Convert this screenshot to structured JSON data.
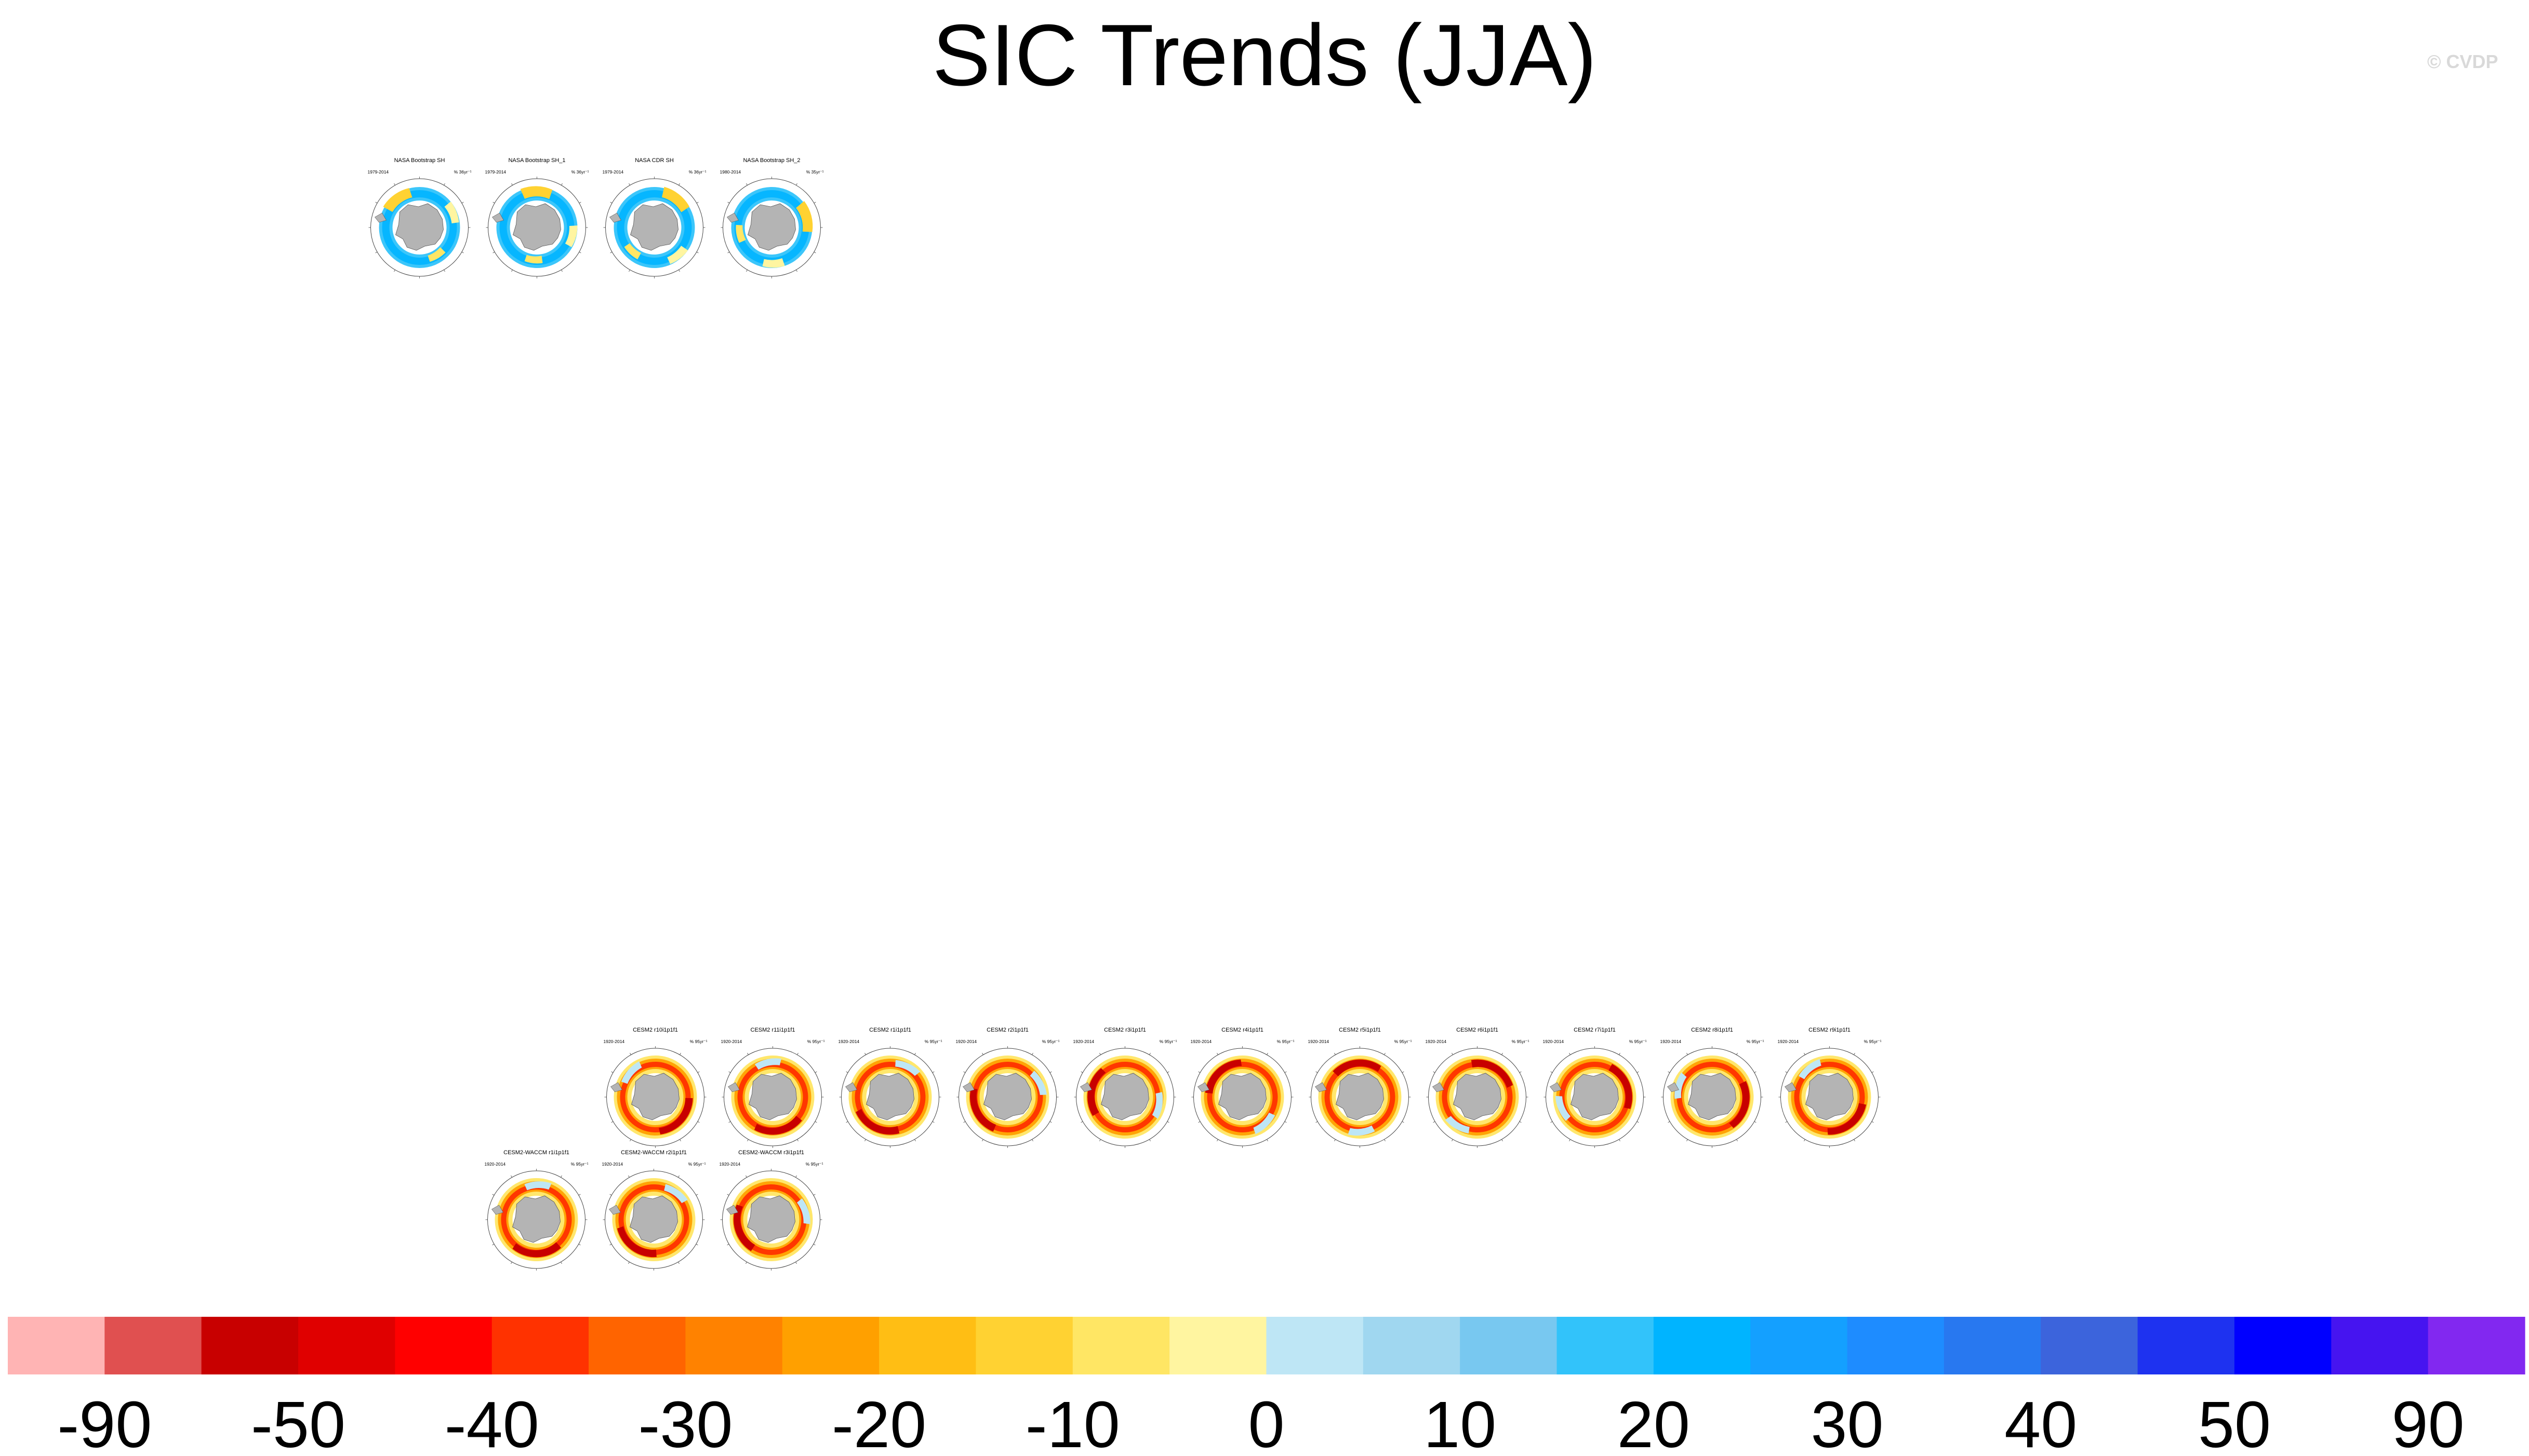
{
  "title": "SIC Trends (JJA)",
  "watermark": "© CVDP",
  "chart_data": {
    "type": "heatmap",
    "title": "SIC Trends (JJA)",
    "projection": "south polar stereographic",
    "colorbar": {
      "tick_labels": [
        "-90",
        "-50",
        "-40",
        "-30",
        "-20",
        "-10",
        "0",
        "10",
        "20",
        "30",
        "40",
        "50",
        "90"
      ],
      "colors": [
        "#ffb4b4",
        "#e05050",
        "#c80000",
        "#e00000",
        "#ff0000",
        "#ff3200",
        "#ff6400",
        "#ff8200",
        "#ffa000",
        "#ffbe14",
        "#ffd232",
        "#ffe664",
        "#fff5a0",
        "#bee6f5",
        "#a0d7f0",
        "#78c8f0",
        "#32c3fa",
        "#00b4ff",
        "#14a0ff",
        "#1e8cff",
        "#2878f0",
        "#3c64dc",
        "#1e32f0",
        "#0000ff",
        "#4614f0",
        "#8228f0"
      ]
    },
    "panels": [
      {
        "title": "NASA Bootstrap SH",
        "years": "1979-2014",
        "units": "% 36yr⁻¹",
        "pattern": "obs"
      },
      {
        "title": "NASA Bootstrap SH_1",
        "years": "1979-2014",
        "units": "% 36yr⁻¹",
        "pattern": "obs"
      },
      {
        "title": "NASA CDR SH",
        "years": "1979-2014",
        "units": "% 36yr⁻¹",
        "pattern": "obs"
      },
      {
        "title": "NASA Bootstrap SH_2",
        "years": "1980-2014",
        "units": "% 35yr⁻¹",
        "pattern": "obs"
      },
      {
        "title": "CESM2 r10i1p1f1",
        "years": "1920-2014",
        "units": "% 95yr⁻¹",
        "pattern": "model"
      },
      {
        "title": "CESM2 r11i1p1f1",
        "years": "1920-2014",
        "units": "% 95yr⁻¹",
        "pattern": "model"
      },
      {
        "title": "CESM2 r1i1p1f1",
        "years": "1920-2014",
        "units": "% 95yr⁻¹",
        "pattern": "model"
      },
      {
        "title": "CESM2 r2i1p1f1",
        "years": "1920-2014",
        "units": "% 95yr⁻¹",
        "pattern": "model"
      },
      {
        "title": "CESM2 r3i1p1f1",
        "years": "1920-2014",
        "units": "% 95yr⁻¹",
        "pattern": "model"
      },
      {
        "title": "CESM2 r4i1p1f1",
        "years": "1920-2014",
        "units": "% 95yr⁻¹",
        "pattern": "model"
      },
      {
        "title": "CESM2 r5i1p1f1",
        "years": "1920-2014",
        "units": "% 95yr⁻¹",
        "pattern": "model"
      },
      {
        "title": "CESM2 r6i1p1f1",
        "years": "1920-2014",
        "units": "% 95yr⁻¹",
        "pattern": "model"
      },
      {
        "title": "CESM2 r7i1p1f1",
        "years": "1920-2014",
        "units": "% 95yr⁻¹",
        "pattern": "model"
      },
      {
        "title": "CESM2 r8i1p1f1",
        "years": "1920-2014",
        "units": "% 95yr⁻¹",
        "pattern": "model"
      },
      {
        "title": "CESM2 r9i1p1f1",
        "years": "1920-2014",
        "units": "% 95yr⁻¹",
        "pattern": "model"
      },
      {
        "title": "CESM2-WACCM r1i1p1f1",
        "years": "1920-2014",
        "units": "% 95yr⁻¹",
        "pattern": "model"
      },
      {
        "title": "CESM2-WACCM r2i1p1f1",
        "years": "1920-2014",
        "units": "% 95yr⁻¹",
        "pattern": "model"
      },
      {
        "title": "CESM2-WACCM r3i1p1f1",
        "years": "1920-2014",
        "units": "% 95yr⁻¹",
        "pattern": "model"
      }
    ]
  }
}
